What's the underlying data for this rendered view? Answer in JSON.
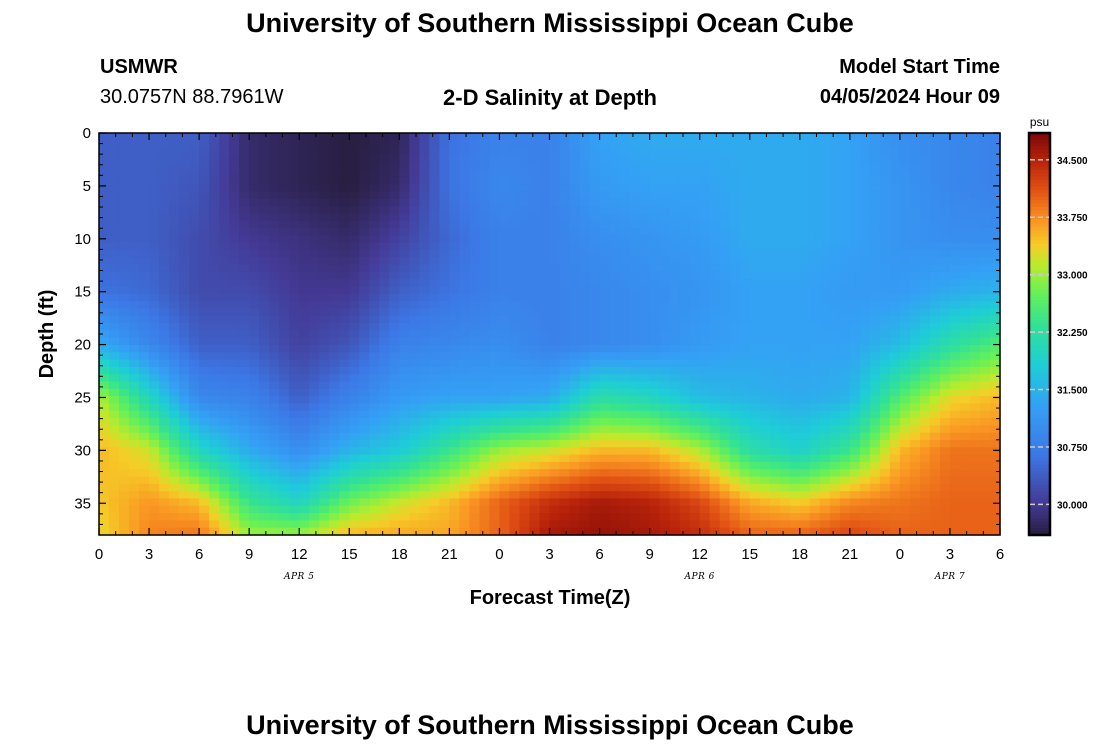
{
  "header": {
    "title": "University of Southern Mississippi Ocean Cube",
    "station_id": "USMWR",
    "coordinates": "30.0757N  88.7961W",
    "plot_title": "2-D Salinity at Depth",
    "model_start_label": "Model Start Time",
    "model_start_value": "04/05/2024 Hour 09"
  },
  "footer": {
    "title": "University of Southern Mississippi Ocean Cube"
  },
  "chart_data": {
    "type": "heatmap",
    "title": "2-D Salinity at Depth",
    "xlabel": "Forecast Time(Z)",
    "ylabel": "Depth (ft)",
    "x_tick_labels": [
      "0",
      "3",
      "6",
      "9",
      "12",
      "15",
      "18",
      "21",
      "0",
      "3",
      "6",
      "9",
      "12",
      "15",
      "18",
      "21",
      "0",
      "3",
      "6"
    ],
    "x_date_labels": [
      {
        "label": "APR 5",
        "at_tick": 4
      },
      {
        "label": "APR 6",
        "at_tick": 12
      },
      {
        "label": "APR 7",
        "at_tick": 17
      }
    ],
    "y_tick_labels": [
      "0",
      "5",
      "10",
      "15",
      "20",
      "25",
      "30",
      "35"
    ],
    "y_tick_values": [
      0,
      5,
      10,
      15,
      20,
      25,
      30,
      35
    ],
    "ylim": [
      0,
      38
    ],
    "xlim_hours": [
      0,
      54
    ],
    "colorbar": {
      "unit": "psu",
      "tick_labels": [
        "34.500",
        "33.750",
        "33.000",
        "32.250",
        "31.500",
        "30.750",
        "30.000"
      ],
      "tick_values": [
        34.5,
        33.75,
        33.0,
        32.25,
        31.5,
        30.75,
        30.0
      ],
      "min": 29.6,
      "max": 34.85
    },
    "x_hours": [
      0,
      3,
      6,
      9,
      12,
      15,
      18,
      21,
      24,
      27,
      30,
      33,
      36,
      39,
      42,
      45,
      48,
      51,
      54
    ],
    "z_depths": [
      0,
      5,
      10,
      15,
      20,
      25,
      30,
      35,
      38
    ],
    "z_salinity_psu": [
      [
        30.4,
        30.4,
        30.4,
        30.6,
        31.4,
        33.1,
        33.5,
        33.4,
        33.3
      ],
      [
        30.4,
        30.4,
        30.4,
        30.5,
        30.9,
        32.0,
        33.2,
        33.7,
        33.8
      ],
      [
        30.4,
        30.3,
        30.2,
        30.2,
        30.4,
        30.9,
        32.0,
        33.5,
        33.9
      ],
      [
        29.8,
        29.8,
        30.0,
        30.2,
        30.4,
        30.8,
        31.4,
        32.4,
        33.0
      ],
      [
        29.7,
        29.7,
        29.9,
        30.0,
        30.1,
        30.4,
        31.0,
        32.0,
        33.0
      ],
      [
        29.6,
        29.6,
        29.8,
        30.0,
        30.3,
        30.8,
        31.5,
        32.8,
        33.5
      ],
      [
        29.7,
        29.8,
        30.1,
        30.4,
        30.8,
        31.2,
        31.8,
        33.2,
        33.6
      ],
      [
        30.6,
        30.6,
        30.5,
        30.6,
        30.9,
        31.3,
        32.4,
        33.5,
        33.6
      ],
      [
        30.8,
        30.9,
        30.8,
        30.8,
        31.0,
        31.3,
        33.0,
        34.0,
        34.0
      ],
      [
        30.8,
        30.8,
        30.8,
        30.8,
        30.8,
        31.4,
        33.2,
        34.4,
        34.6
      ],
      [
        31.3,
        31.2,
        31.0,
        30.9,
        30.9,
        32.2,
        33.5,
        34.6,
        34.7
      ],
      [
        31.4,
        31.3,
        31.1,
        31.0,
        31.0,
        32.0,
        33.5,
        34.5,
        34.6
      ],
      [
        31.4,
        31.3,
        31.2,
        31.1,
        31.2,
        31.6,
        33.1,
        34.2,
        34.4
      ],
      [
        31.4,
        31.4,
        31.4,
        31.3,
        31.3,
        31.5,
        32.2,
        33.6,
        34.0
      ],
      [
        31.4,
        31.4,
        31.4,
        31.3,
        31.3,
        31.4,
        31.9,
        33.4,
        34.0
      ],
      [
        31.3,
        31.3,
        31.3,
        31.2,
        31.3,
        31.5,
        32.4,
        33.8,
        34.2
      ],
      [
        31.0,
        31.1,
        31.1,
        31.2,
        31.6,
        32.6,
        33.5,
        33.9,
        34.0
      ],
      [
        30.9,
        30.9,
        31.0,
        31.4,
        32.2,
        33.3,
        33.9,
        34.0,
        34.0
      ],
      [
        30.8,
        30.8,
        31.0,
        31.5,
        32.6,
        33.5,
        33.9,
        34.0,
        34.0
      ]
    ]
  }
}
